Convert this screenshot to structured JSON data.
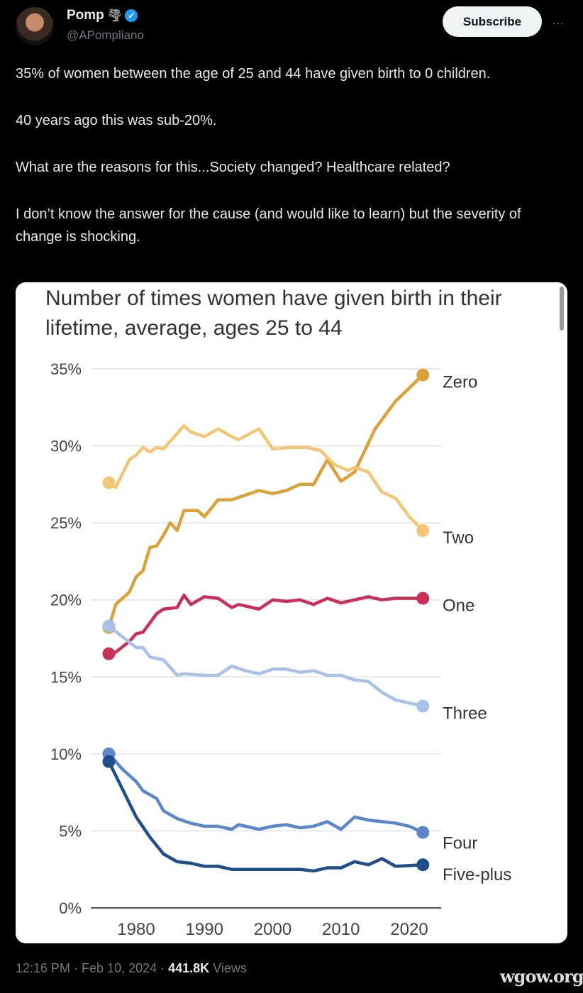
{
  "author": {
    "name": "Pomp",
    "emoji": "🌪",
    "handle": "@APompliano",
    "verified": true
  },
  "subscribe_label": "Subscribe",
  "more_icon": "…",
  "tweet": {
    "paragraphs": [
      "35% of women between the age of 25 and 44 have given birth to 0 children.",
      "40 years ago this was sub-20%.",
      "What are the reasons for this...Society changed? Healthcare related?",
      "I don’t know the answer for the cause (and would like to learn) but the severity of change is shocking."
    ]
  },
  "meta": {
    "time": "12:16 PM · Feb 10, 2024 · ",
    "views": "441.8K",
    "views_label": " Views"
  },
  "watermark": "wgow.org",
  "chart_data": {
    "type": "line",
    "title": "Number of times women have given birth in their lifetime, average, ages 25 to 44",
    "xlabel": "",
    "ylabel": "",
    "xlim": [
      1976,
      2022
    ],
    "ylim": [
      0,
      35
    ],
    "yticks": [
      "0%",
      "5%",
      "10%",
      "15%",
      "20%",
      "25%",
      "30%",
      "35%"
    ],
    "ytick_values": [
      0,
      5,
      10,
      15,
      20,
      25,
      30,
      35
    ],
    "xticks": [
      "1980",
      "1990",
      "2000",
      "2010",
      "2020"
    ],
    "xtick_values": [
      1980,
      1990,
      2000,
      2010,
      2020
    ],
    "grid": true,
    "legend": "direct labels at right",
    "series": [
      {
        "name": "Zero",
        "color": "#d9a23a",
        "x": [
          1976,
          1977,
          1979,
          1980,
          1981,
          1982,
          1983,
          1984,
          1985,
          1986,
          1987,
          1989,
          1990,
          1992,
          1994,
          1996,
          1998,
          2000,
          2002,
          2004,
          2006,
          2008,
          2010,
          2012,
          2015,
          2018,
          2022
        ],
        "values": [
          18.2,
          19.7,
          20.5,
          21.5,
          21.9,
          23.4,
          23.5,
          24.2,
          25.0,
          24.5,
          25.8,
          25.8,
          25.4,
          26.5,
          26.5,
          26.8,
          27.1,
          26.9,
          27.1,
          27.5,
          27.5,
          29.1,
          27.7,
          28.3,
          31.1,
          32.9,
          34.6
        ]
      },
      {
        "name": "Two",
        "color": "#f2c676",
        "x": [
          1976,
          1977,
          1979,
          1980,
          1981,
          1982,
          1983,
          1984,
          1986,
          1987,
          1988,
          1990,
          1992,
          1994,
          1995,
          1998,
          2000,
          2003,
          2005,
          2007,
          2009,
          2011,
          2012,
          2014,
          2016,
          2018,
          2020,
          2022
        ],
        "values": [
          27.6,
          27.3,
          29.1,
          29.4,
          29.9,
          29.6,
          29.9,
          29.8,
          30.8,
          31.3,
          30.9,
          30.6,
          31.1,
          30.6,
          30.4,
          31.1,
          29.8,
          29.9,
          29.9,
          29.7,
          28.8,
          28.4,
          28.6,
          28.3,
          27.0,
          26.6,
          25.4,
          24.5
        ]
      },
      {
        "name": "One",
        "color": "#c8305a",
        "x": [
          1976,
          1977,
          1979,
          1980,
          1981,
          1983,
          1984,
          1986,
          1987,
          1988,
          1990,
          1992,
          1994,
          1995,
          1998,
          2000,
          2002,
          2004,
          2006,
          2008,
          2010,
          2012,
          2014,
          2016,
          2018,
          2022
        ],
        "values": [
          16.5,
          16.6,
          17.3,
          17.8,
          17.9,
          19.1,
          19.4,
          19.5,
          20.3,
          19.7,
          20.2,
          20.1,
          19.5,
          19.7,
          19.4,
          20.0,
          19.9,
          20.0,
          19.7,
          20.1,
          19.8,
          20.0,
          20.2,
          20.0,
          20.1,
          20.1
        ]
      },
      {
        "name": "Three",
        "color": "#a9c1e6",
        "x": [
          1976,
          1978,
          1980,
          1981,
          1982,
          1984,
          1986,
          1987,
          1990,
          1992,
          1994,
          1996,
          1998,
          2000,
          2002,
          2004,
          2006,
          2008,
          2010,
          2012,
          2014,
          2016,
          2018,
          2020,
          2022
        ],
        "values": [
          18.3,
          17.6,
          16.9,
          16.9,
          16.3,
          16.1,
          15.1,
          15.2,
          15.1,
          15.1,
          15.7,
          15.4,
          15.2,
          15.5,
          15.5,
          15.3,
          15.4,
          15.1,
          15.1,
          14.8,
          14.7,
          14.0,
          13.5,
          13.3,
          13.1
        ]
      },
      {
        "name": "Four",
        "color": "#5b86c8",
        "x": [
          1976,
          1978,
          1980,
          1981,
          1983,
          1984,
          1986,
          1988,
          1990,
          1992,
          1994,
          1995,
          1998,
          2000,
          2002,
          2004,
          2006,
          2008,
          2010,
          2012,
          2014,
          2016,
          2018,
          2020,
          2022
        ],
        "values": [
          10.0,
          9.0,
          8.2,
          7.6,
          7.1,
          6.3,
          5.8,
          5.5,
          5.3,
          5.3,
          5.1,
          5.4,
          5.1,
          5.3,
          5.4,
          5.2,
          5.3,
          5.6,
          5.1,
          5.9,
          5.7,
          5.6,
          5.5,
          5.3,
          4.9
        ]
      },
      {
        "name": "Five-plus",
        "color": "#1f4e8a",
        "x": [
          1976,
          1978,
          1980,
          1982,
          1984,
          1986,
          1988,
          1990,
          1992,
          1994,
          1996,
          1998,
          2000,
          2002,
          2004,
          2006,
          2008,
          2010,
          2012,
          2014,
          2016,
          2018,
          2022
        ],
        "values": [
          9.5,
          7.7,
          5.9,
          4.6,
          3.5,
          3.0,
          2.9,
          2.7,
          2.7,
          2.5,
          2.5,
          2.5,
          2.5,
          2.5,
          2.5,
          2.4,
          2.6,
          2.6,
          3.0,
          2.8,
          3.2,
          2.7,
          2.8
        ]
      }
    ]
  }
}
